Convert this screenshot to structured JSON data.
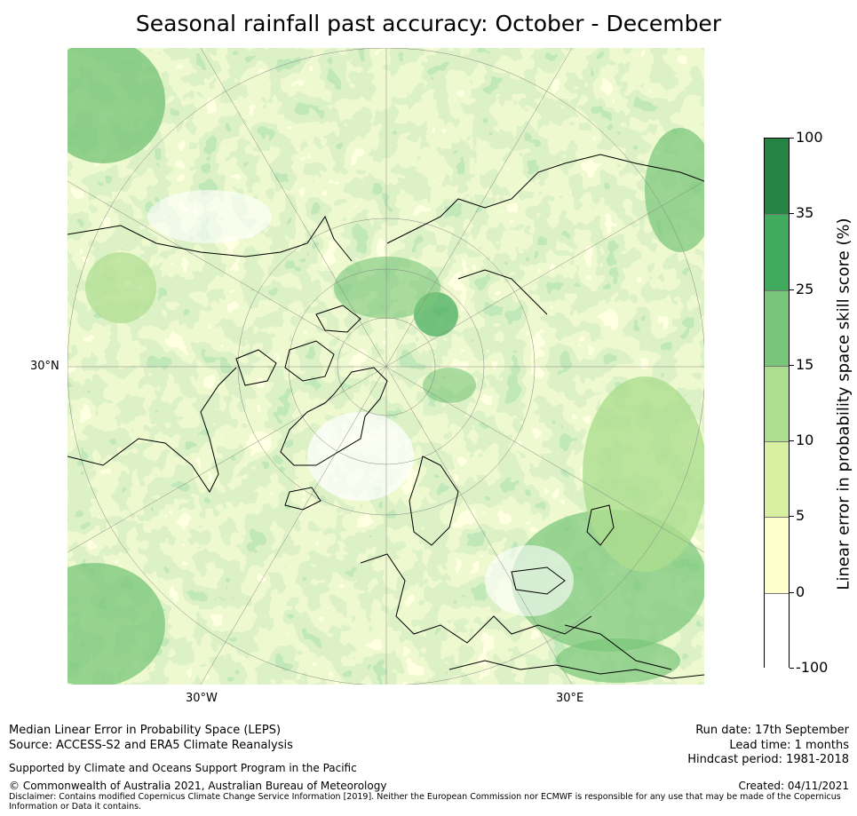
{
  "title": "Seasonal rainfall past accuracy: October - December",
  "map": {
    "lat_label": "30°N",
    "lon_labels": {
      "west": "30°W",
      "east": "30°E"
    },
    "colors": {
      "c0": "#ffffff",
      "c1": "#ffffcc",
      "c2": "#d9f0a3",
      "c3": "#addd8e",
      "c4": "#78c679",
      "c5": "#41ab5d",
      "c6": "#238443",
      "land": "#000000"
    }
  },
  "colorbar": {
    "label": "Linear error in probability space skill score (%)",
    "ticks": [
      "100",
      "35",
      "25",
      "15",
      "10",
      "5",
      "0",
      "-100"
    ],
    "colors": [
      "#238443",
      "#41ab5d",
      "#78c679",
      "#addd8e",
      "#d9f0a3",
      "#ffffcc",
      "#ffffff"
    ]
  },
  "footer": {
    "line1": "Median Linear Error in Probability Space (LEPS)",
    "line2": "Source: ACCESS-S2 and ERA5 Climate Reanalysis",
    "support": "Supported by Climate and Oceans Support Program in the Pacific",
    "copyright": "© Commonwealth of Australia 2021, Australian Bureau of Meteorology",
    "disclaimer1": "Disclaimer: Contains modified Copernicus Climate Change Service Information [2019]. Neither the European Commission nor ECMWF is responsible for any use that may be made of the Copernicus",
    "disclaimer2": "Information or Data it contains.",
    "run_date": "Run date: 17th September",
    "lead_time": "Lead time: 1 months",
    "hindcast": "Hindcast period: 1981-2018",
    "created": "Created: 04/11/2021"
  }
}
